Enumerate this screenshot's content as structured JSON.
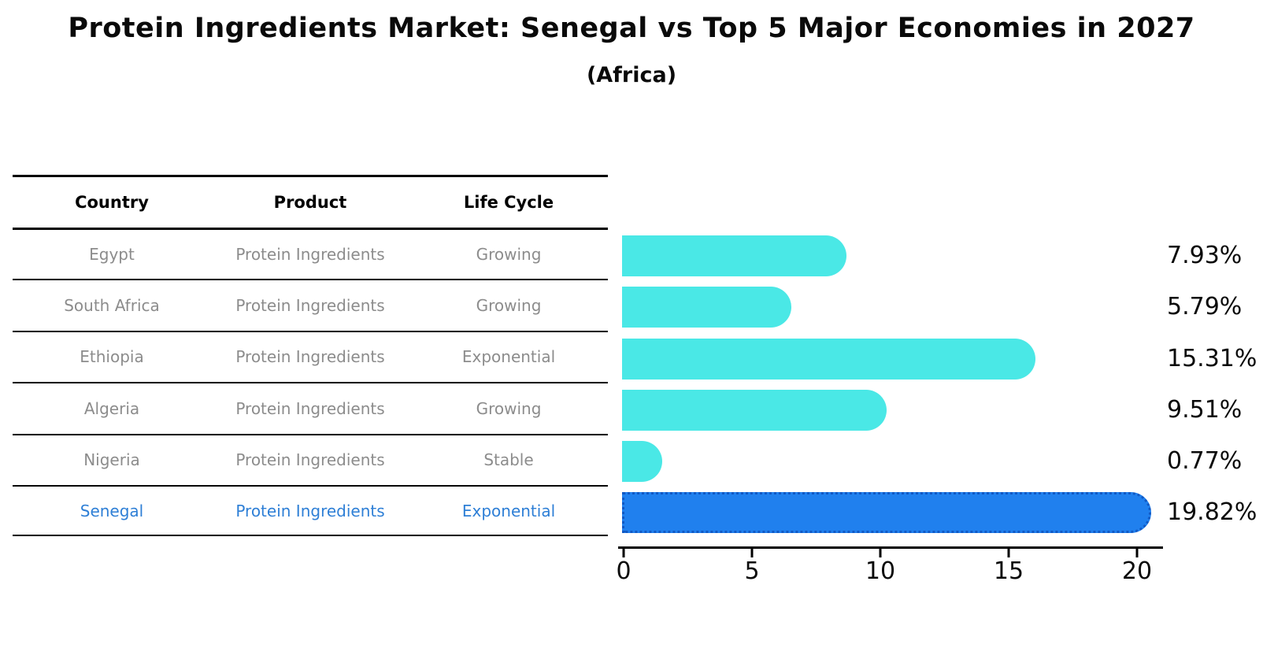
{
  "title": "Protein Ingredients Market: Senegal vs Top 5 Major Economies in 2027",
  "subtitle": "(Africa)",
  "table": {
    "headers": [
      "Country",
      "Product",
      "Life Cycle"
    ],
    "rows": [
      {
        "country": "Egypt",
        "product": "Protein Ingredients",
        "life_cycle": "Growing"
      },
      {
        "country": "South Africa",
        "product": "Protein Ingredients",
        "life_cycle": "Growing"
      },
      {
        "country": "Ethiopia",
        "product": "Protein Ingredients",
        "life_cycle": "Exponential"
      },
      {
        "country": "Algeria",
        "product": "Protein Ingredients",
        "life_cycle": "Growing"
      },
      {
        "country": "Nigeria",
        "product": "Protein Ingredients",
        "life_cycle": "Stable"
      },
      {
        "country": "Senegal",
        "product": "Protein Ingredients",
        "life_cycle": "Exponential"
      }
    ],
    "highlight_row": "Senegal"
  },
  "chart_data": {
    "type": "bar",
    "orientation": "horizontal",
    "title": "Protein Ingredients Market: Senegal vs Top 5 Major Economies in 2027 (Africa)",
    "categories": [
      "Egypt",
      "South Africa",
      "Ethiopia",
      "Algeria",
      "Nigeria",
      "Senegal"
    ],
    "values": [
      7.93,
      5.79,
      15.31,
      9.51,
      0.77,
      19.82
    ],
    "value_labels": [
      "7.93%",
      "5.79%",
      "15.31%",
      "9.51%",
      "0.77%",
      "19.82%"
    ],
    "xlim": [
      0,
      21
    ],
    "x_ticks": [
      0,
      5,
      10,
      15,
      20
    ],
    "x_tick_labels": [
      "0",
      "5",
      "10",
      "15",
      "20"
    ],
    "grid": false,
    "legend": false,
    "bar_color": "#4ae8e6",
    "highlight_index": 5,
    "highlight_color": "#2080ee",
    "highlight_edge_color": "#1159c4",
    "highlight_edge_style": "dotted",
    "highlight_text_color": "#2e7fd6",
    "row_text_color": "#8c8c8c"
  }
}
